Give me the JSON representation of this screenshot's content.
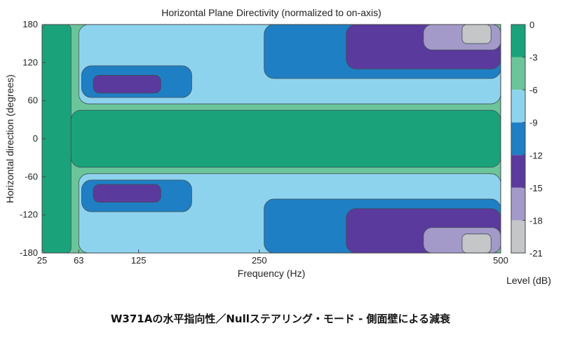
{
  "chart_data": {
    "type": "heatmap",
    "subtype": "filled-contour",
    "title": "Horizontal Plane Directivity (normalized to on-axis)",
    "xlabel": "Frequency (Hz)",
    "ylabel": "Horizontal direction (degrees)",
    "xlim": [
      25,
      500
    ],
    "ylim": [
      -180,
      180
    ],
    "x_scale": "linear",
    "x_ticks": [
      {
        "value": 25,
        "label": "25"
      },
      {
        "value": 63,
        "label": "63"
      },
      {
        "value": 125,
        "label": "125"
      },
      {
        "value": 250,
        "label": "250"
      },
      {
        "value": 500,
        "label": "500"
      }
    ],
    "y_ticks": [
      {
        "value": 180,
        "label": "180"
      },
      {
        "value": 120,
        "label": "120"
      },
      {
        "value": 60,
        "label": "60"
      },
      {
        "value": 0,
        "label": "0"
      },
      {
        "value": -60,
        "label": "-60"
      },
      {
        "value": -120,
        "label": "-120"
      },
      {
        "value": -180,
        "label": "-180"
      }
    ],
    "colorbar": {
      "label": "Level (dB)",
      "ticks": [
        "0",
        "-3",
        "-6",
        "-9",
        "-12",
        "-15",
        "-18",
        "-21"
      ],
      "bands": [
        {
          "range": "0 to -3",
          "color": "#1aa37a"
        },
        {
          "range": "-3 to -6",
          "color": "#6cc59a"
        },
        {
          "range": "-6 to -9",
          "color": "#8ed3ee"
        },
        {
          "range": "-9 to -12",
          "color": "#1f7fc4"
        },
        {
          "range": "-12 to -15",
          "color": "#5b3a9e"
        },
        {
          "range": "-15 to -18",
          "color": "#a39ac9"
        },
        {
          "range": "-18 to -21",
          "color": "#c4c6c7"
        }
      ]
    },
    "grid": false,
    "symmetric_about_zero_degrees": true,
    "regions": [
      {
        "level": 1,
        "freq_hz": [
          25,
          55
        ],
        "angle_deg": [
          -180,
          180
        ]
      },
      {
        "level": 1,
        "freq_hz": [
          55,
          500
        ],
        "angle_deg": [
          -45,
          45
        ]
      },
      {
        "level": 2,
        "freq_hz": [
          70,
          230
        ],
        "angle_deg": [
          125,
          180
        ]
      },
      {
        "level": 3,
        "freq_hz": [
          63,
          500
        ],
        "angle_deg": [
          55,
          180
        ]
      },
      {
        "level": 4,
        "freq_hz": [
          66,
          180
        ],
        "angle_deg": [
          65,
          115
        ]
      },
      {
        "level": 4,
        "freq_hz": [
          255,
          500
        ],
        "angle_deg": [
          95,
          180
        ]
      },
      {
        "level": 5,
        "freq_hz": [
          78,
          148
        ],
        "angle_deg": [
          72,
          100
        ]
      },
      {
        "level": 5,
        "freq_hz": [
          340,
          500
        ],
        "angle_deg": [
          110,
          180
        ]
      },
      {
        "level": 6,
        "freq_hz": [
          420,
          500
        ],
        "angle_deg": [
          140,
          180
        ]
      },
      {
        "level": 7,
        "freq_hz": [
          460,
          490
        ],
        "angle_deg": [
          150,
          180
        ]
      }
    ]
  },
  "caption": "W371Aの水平指向性／Nullステアリング・モード - 側面壁による減衰"
}
